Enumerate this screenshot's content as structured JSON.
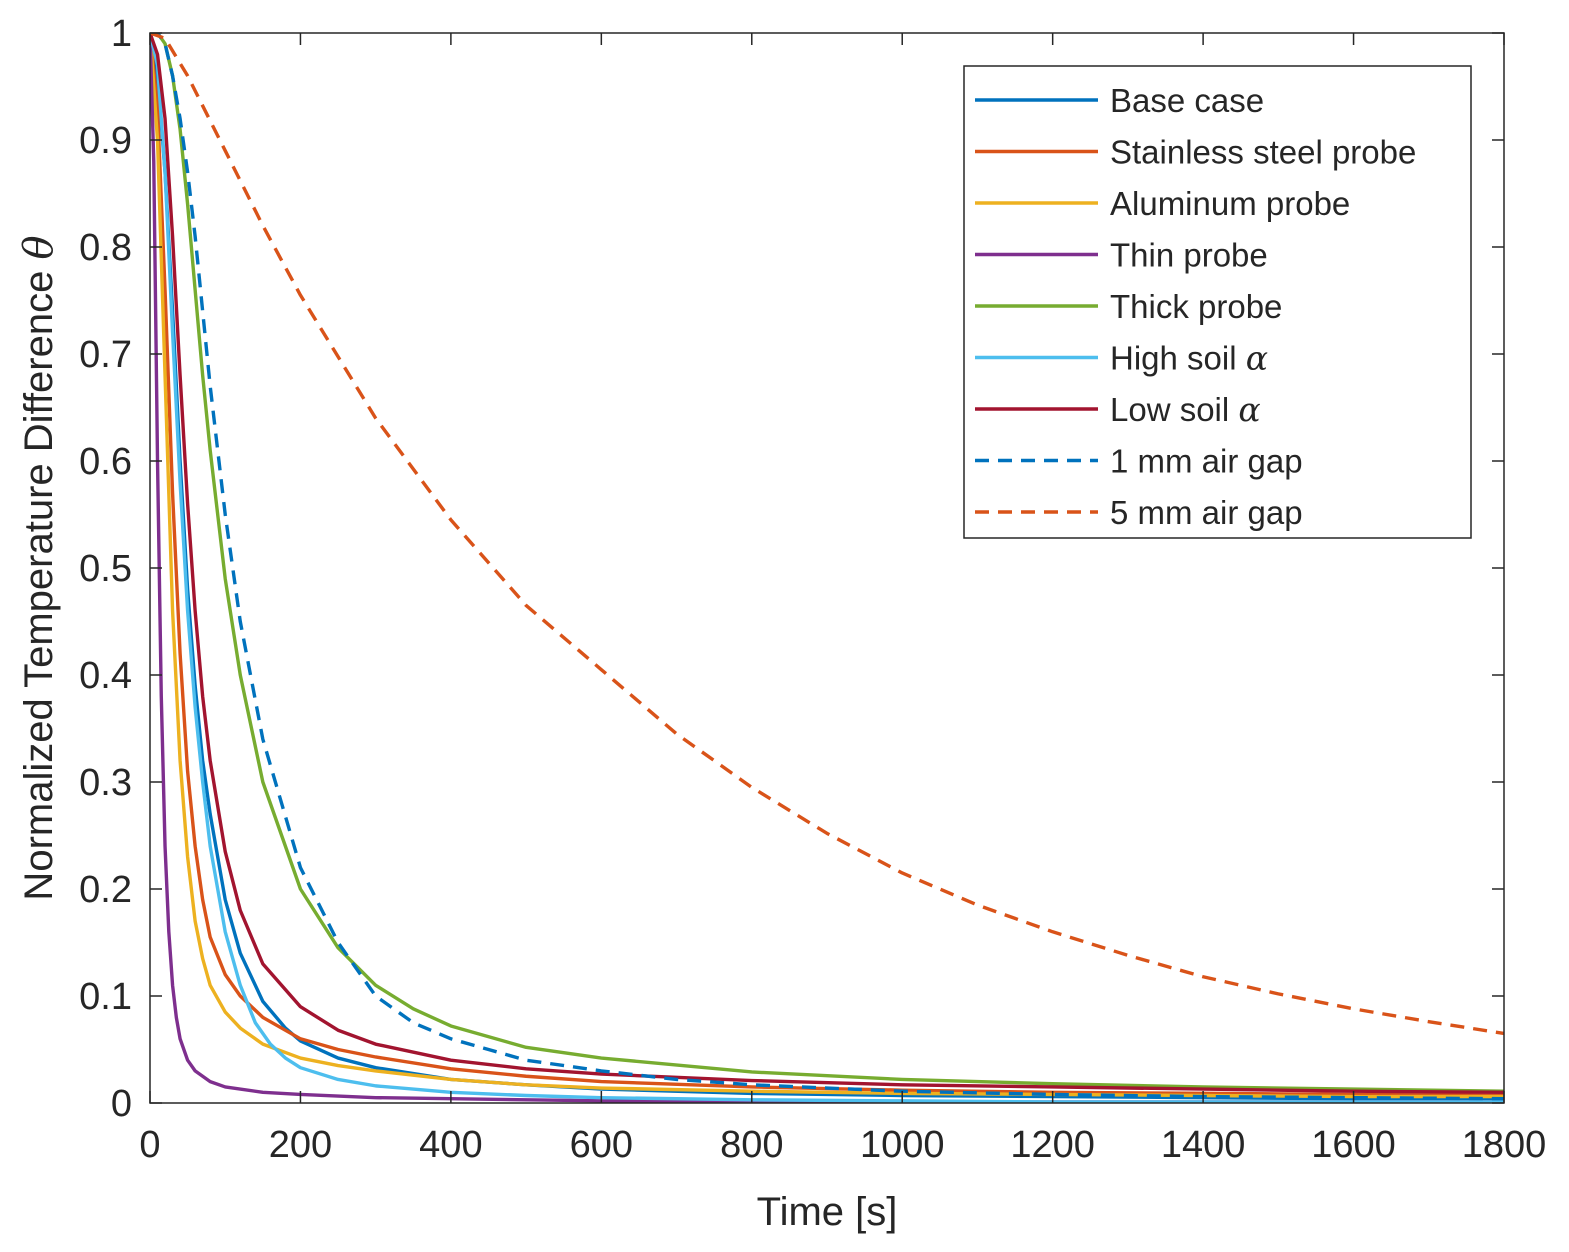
{
  "chart_data": {
    "type": "line",
    "title": "",
    "xlabel": "Time [s]",
    "ylabel_text": "Normalized Temperature Difference ",
    "ylabel_symbol": "θ",
    "xlim": [
      0,
      1800
    ],
    "ylim": [
      0,
      1
    ],
    "xticks": [
      0,
      200,
      400,
      600,
      800,
      1000,
      1200,
      1400,
      1600,
      1800
    ],
    "xtick_labels": [
      "0",
      "200",
      "400",
      "600",
      "800",
      "1000",
      "1200",
      "1400",
      "1600",
      "1800"
    ],
    "yticks": [
      0,
      0.1,
      0.2,
      0.3,
      0.4,
      0.5,
      0.6,
      0.7,
      0.8,
      0.9,
      1
    ],
    "ytick_labels": [
      "0",
      "0.1",
      "0.2",
      "0.3",
      "0.4",
      "0.5",
      "0.6",
      "0.7",
      "0.8",
      "0.9",
      "1"
    ],
    "grid": false,
    "legend_position": "top-right",
    "series": [
      {
        "name": "Base case",
        "legend_text": "Base case",
        "legend_symbol": "",
        "color": "#0072BD",
        "dash": "solid",
        "x": [
          0,
          10,
          20,
          30,
          40,
          50,
          60,
          70,
          80,
          100,
          120,
          150,
          180,
          200,
          250,
          300,
          400,
          500,
          600,
          800,
          1000,
          1200,
          1400,
          1600,
          1800
        ],
        "y": [
          1,
          0.96,
          0.87,
          0.74,
          0.6,
          0.48,
          0.39,
          0.32,
          0.27,
          0.19,
          0.14,
          0.095,
          0.07,
          0.058,
          0.042,
          0.033,
          0.022,
          0.017,
          0.013,
          0.009,
          0.007,
          0.006,
          0.005,
          0.004,
          0.004
        ]
      },
      {
        "name": "Stainless steel probe",
        "legend_text": "Stainless steel probe",
        "legend_symbol": "",
        "color": "#D95319",
        "dash": "solid",
        "x": [
          0,
          10,
          20,
          30,
          40,
          50,
          60,
          70,
          80,
          100,
          120,
          150,
          200,
          250,
          300,
          400,
          500,
          600,
          800,
          1000,
          1200,
          1400,
          1600,
          1800
        ],
        "y": [
          1,
          0.93,
          0.76,
          0.57,
          0.42,
          0.31,
          0.24,
          0.19,
          0.155,
          0.12,
          0.1,
          0.08,
          0.06,
          0.05,
          0.043,
          0.032,
          0.025,
          0.02,
          0.015,
          0.012,
          0.01,
          0.009,
          0.008,
          0.007
        ]
      },
      {
        "name": "Aluminum probe",
        "legend_text": "Aluminum probe",
        "legend_symbol": "",
        "color": "#EDB120",
        "dash": "solid",
        "x": [
          0,
          10,
          20,
          30,
          40,
          50,
          60,
          70,
          80,
          100,
          120,
          150,
          200,
          250,
          300,
          400,
          500,
          600,
          800,
          1000,
          1200,
          1400,
          1600,
          1800
        ],
        "y": [
          1,
          0.9,
          0.68,
          0.46,
          0.32,
          0.23,
          0.17,
          0.135,
          0.11,
          0.085,
          0.07,
          0.055,
          0.042,
          0.035,
          0.03,
          0.022,
          0.017,
          0.014,
          0.011,
          0.009,
          0.008,
          0.007,
          0.006,
          0.006
        ]
      },
      {
        "name": "Thin probe",
        "legend_text": "Thin probe",
        "legend_symbol": "",
        "color": "#7E2F8E",
        "dash": "solid",
        "x": [
          0,
          5,
          10,
          15,
          20,
          25,
          30,
          35,
          40,
          50,
          60,
          80,
          100,
          150,
          200,
          300,
          400,
          600,
          800,
          1000,
          1200,
          1400,
          1600,
          1800
        ],
        "y": [
          1,
          0.88,
          0.6,
          0.38,
          0.24,
          0.16,
          0.11,
          0.08,
          0.06,
          0.04,
          0.03,
          0.02,
          0.015,
          0.01,
          0.008,
          0.005,
          0.004,
          0.002,
          0.001,
          0.001,
          0.001,
          0.001,
          0.001,
          0.001
        ]
      },
      {
        "name": "Thick probe",
        "legend_text": "Thick probe",
        "legend_symbol": "",
        "color": "#77AC30",
        "dash": "solid",
        "x": [
          0,
          10,
          20,
          30,
          40,
          50,
          60,
          70,
          80,
          100,
          120,
          150,
          200,
          250,
          300,
          350,
          400,
          500,
          600,
          800,
          1000,
          1200,
          1400,
          1600,
          1800
        ],
        "y": [
          1,
          1.0,
          0.99,
          0.96,
          0.91,
          0.84,
          0.76,
          0.68,
          0.61,
          0.49,
          0.4,
          0.3,
          0.2,
          0.145,
          0.11,
          0.088,
          0.072,
          0.052,
          0.042,
          0.029,
          0.022,
          0.018,
          0.015,
          0.013,
          0.011
        ]
      },
      {
        "name": "High soil α",
        "legend_text": "High soil ",
        "legend_symbol": "α",
        "color": "#4DBEEE",
        "dash": "solid",
        "x": [
          0,
          10,
          20,
          30,
          40,
          50,
          60,
          70,
          80,
          100,
          120,
          140,
          160,
          180,
          200,
          250,
          300,
          400,
          500,
          600,
          800,
          1000,
          1200,
          1400,
          1600,
          1800
        ],
        "y": [
          1,
          0.97,
          0.87,
          0.72,
          0.58,
          0.46,
          0.37,
          0.3,
          0.24,
          0.16,
          0.11,
          0.075,
          0.055,
          0.042,
          0.033,
          0.022,
          0.016,
          0.01,
          0.007,
          0.005,
          0.003,
          0.002,
          0.001,
          0.001,
          0.001,
          0.001
        ]
      },
      {
        "name": "Low soil α",
        "legend_text": "Low soil ",
        "legend_symbol": "α",
        "color": "#A2142F",
        "dash": "solid",
        "x": [
          0,
          10,
          20,
          30,
          40,
          50,
          60,
          70,
          80,
          100,
          120,
          150,
          200,
          250,
          300,
          400,
          500,
          600,
          800,
          1000,
          1200,
          1400,
          1600,
          1800
        ],
        "y": [
          1,
          0.98,
          0.92,
          0.81,
          0.68,
          0.56,
          0.46,
          0.38,
          0.32,
          0.235,
          0.18,
          0.13,
          0.09,
          0.068,
          0.055,
          0.04,
          0.032,
          0.027,
          0.021,
          0.017,
          0.015,
          0.013,
          0.011,
          0.01
        ]
      },
      {
        "name": "1 mm air gap",
        "legend_text": "1 mm air gap",
        "legend_symbol": "",
        "color": "#0072BD",
        "dash": "dashed",
        "x": [
          0,
          10,
          20,
          30,
          40,
          50,
          60,
          70,
          80,
          100,
          120,
          150,
          200,
          250,
          300,
          350,
          400,
          450,
          500,
          600,
          700,
          800,
          1000,
          1200,
          1400,
          1600,
          1800
        ],
        "y": [
          1,
          1.0,
          0.99,
          0.96,
          0.92,
          0.87,
          0.81,
          0.74,
          0.67,
          0.55,
          0.45,
          0.34,
          0.22,
          0.15,
          0.1,
          0.075,
          0.06,
          0.05,
          0.04,
          0.03,
          0.022,
          0.017,
          0.011,
          0.008,
          0.006,
          0.005,
          0.004
        ]
      },
      {
        "name": "5 mm air gap",
        "legend_text": "5 mm air gap",
        "legend_symbol": "",
        "color": "#D95319",
        "dash": "dashed",
        "x": [
          0,
          20,
          50,
          100,
          150,
          200,
          300,
          400,
          500,
          600,
          700,
          800,
          900,
          1000,
          1100,
          1200,
          1300,
          1400,
          1500,
          1600,
          1700,
          1800
        ],
        "y": [
          1,
          0.995,
          0.96,
          0.89,
          0.82,
          0.755,
          0.64,
          0.545,
          0.465,
          0.405,
          0.345,
          0.295,
          0.252,
          0.215,
          0.185,
          0.16,
          0.138,
          0.118,
          0.102,
          0.088,
          0.076,
          0.065
        ]
      }
    ]
  }
}
